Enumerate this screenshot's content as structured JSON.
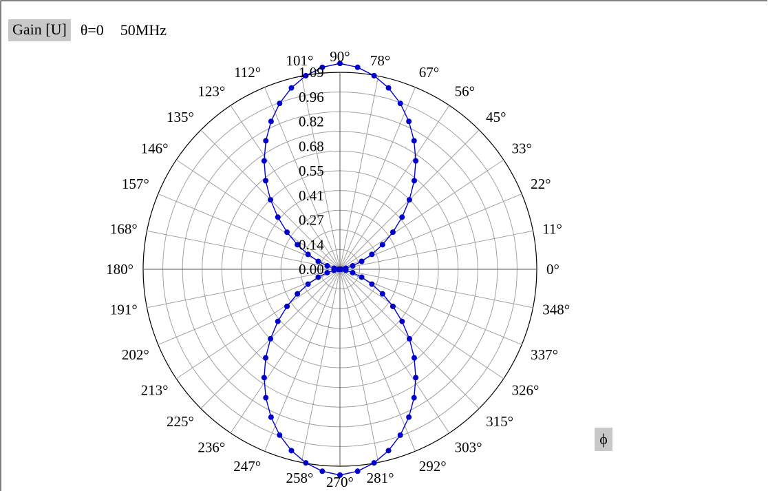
{
  "header": {
    "gain_label": "Gain [U]",
    "theta_label": "θ=0",
    "freq_label": "50MHz"
  },
  "axis_symbol": "ϕ",
  "colors": {
    "series": "#0000cc",
    "grid": "#a0a0a0",
    "label_bg": "#c8c8c8"
  },
  "chart_data": {
    "type": "polar-line",
    "radial_ticks": [
      "0.00",
      "0.14",
      "0.27",
      "0.41",
      "0.55",
      "0.68",
      "0.82",
      "0.96",
      "1.09"
    ],
    "radial_range": [
      0,
      1.09
    ],
    "angle_labels": [
      "0°",
      "11°",
      "22°",
      "33°",
      "45°",
      "56°",
      "67°",
      "78°",
      "90°",
      "101°",
      "112°",
      "123°",
      "135°",
      "146°",
      "157°",
      "168°",
      "180°",
      "191°",
      "202°",
      "213°",
      "225°",
      "236°",
      "247°",
      "258°",
      "270°",
      "281°",
      "292°",
      "303°",
      "315°",
      "326°",
      "337°",
      "348°"
    ],
    "angle_ticks": [
      0,
      11.25,
      22.5,
      33.75,
      45,
      56.25,
      67.5,
      78.75,
      90,
      101.25,
      112.5,
      123.75,
      135,
      146.25,
      157.5,
      168.75,
      180,
      191.25,
      202.5,
      213.75,
      225,
      236.25,
      247.5,
      258.75,
      270,
      281.25,
      292.5,
      303.75,
      315,
      326.25,
      337.5,
      348.75
    ],
    "series": [
      {
        "phi_deg": [
          0,
          5,
          10,
          15,
          20,
          25,
          30,
          35,
          40,
          45,
          50,
          55,
          60,
          65,
          70,
          75,
          80,
          85,
          90,
          95,
          100,
          105,
          110,
          115,
          120,
          125,
          130,
          135,
          140,
          145,
          150,
          155,
          160,
          165,
          170,
          175,
          180,
          185,
          190,
          195,
          200,
          205,
          210,
          215,
          220,
          225,
          230,
          235,
          240,
          245,
          250,
          255,
          260,
          265,
          270,
          275,
          280,
          285,
          290,
          295,
          300,
          305,
          310,
          315,
          320,
          325,
          330,
          335,
          340,
          345,
          350,
          355
        ],
        "gain": [
          0.0,
          0.008,
          0.033,
          0.073,
          0.128,
          0.195,
          0.272,
          0.358,
          0.449,
          0.544,
          0.64,
          0.732,
          0.821,
          0.903,
          0.977,
          1.039,
          1.088,
          1.122,
          1.139,
          1.122,
          1.088,
          1.039,
          0.977,
          0.903,
          0.821,
          0.732,
          0.64,
          0.544,
          0.449,
          0.358,
          0.272,
          0.195,
          0.128,
          0.073,
          0.033,
          0.008,
          0.0,
          0.008,
          0.033,
          0.073,
          0.128,
          0.195,
          0.272,
          0.358,
          0.449,
          0.544,
          0.64,
          0.732,
          0.821,
          0.903,
          0.977,
          1.039,
          1.088,
          1.122,
          1.139,
          1.122,
          1.088,
          1.039,
          0.977,
          0.903,
          0.821,
          0.732,
          0.64,
          0.544,
          0.449,
          0.358,
          0.272,
          0.195,
          0.128,
          0.073,
          0.033,
          0.008
        ]
      }
    ]
  }
}
